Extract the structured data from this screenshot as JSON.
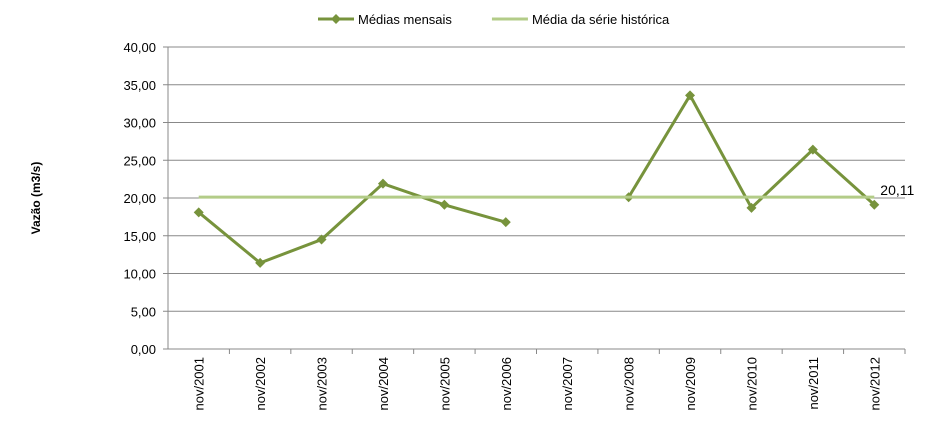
{
  "chart_data": {
    "type": "line",
    "y_label": "Vazão (m3/s)",
    "categories": [
      "nov/2001",
      "nov/2002",
      "nov/2003",
      "nov/2004",
      "nov/2005",
      "nov/2006",
      "nov/2007",
      "nov/2008",
      "nov/2009",
      "nov/2010",
      "nov/2011",
      "nov/2012"
    ],
    "series": [
      {
        "name": "Médias mensais",
        "color": "#77933c",
        "marker": "diamond",
        "values": [
          18.1,
          11.4,
          14.5,
          21.9,
          19.1,
          16.8,
          null,
          20.1,
          33.6,
          18.7,
          26.4,
          19.1
        ]
      },
      {
        "name": "Média da série histórica",
        "color": "#b3cc88",
        "values": [
          20.11,
          20.11,
          20.11,
          20.11,
          20.11,
          20.11,
          20.11,
          20.11,
          20.11,
          20.11,
          20.11,
          20.11
        ],
        "value_labels": [
          null,
          null,
          null,
          null,
          null,
          null,
          null,
          null,
          null,
          null,
          null,
          "20,11"
        ]
      }
    ],
    "ylim": [
      0,
      40
    ],
    "yticks": [
      {
        "value": 0,
        "label": "0,00"
      },
      {
        "value": 5,
        "label": "5,00"
      },
      {
        "value": 10,
        "label": "10,00"
      },
      {
        "value": 15,
        "label": "15,00"
      },
      {
        "value": 20,
        "label": "20,00"
      },
      {
        "value": 25,
        "label": "25,00"
      },
      {
        "value": 30,
        "label": "30,00"
      },
      {
        "value": 35,
        "label": "35,00"
      },
      {
        "value": 40,
        "label": "40,00"
      }
    ],
    "grid": true,
    "legend": "top"
  }
}
